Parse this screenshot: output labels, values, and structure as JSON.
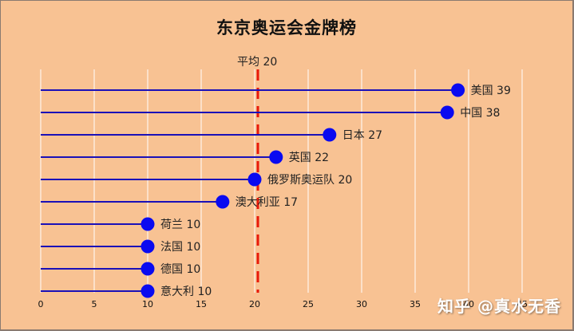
{
  "chart_data": {
    "type": "lollipop",
    "title": "东京奥运会金牌榜",
    "xlabel": "",
    "ylabel": "",
    "xlim": [
      0,
      45
    ],
    "xticks": [
      0,
      5,
      10,
      15,
      20,
      25,
      30,
      35,
      40,
      45
    ],
    "grid": "vertical",
    "categories": [
      "美国",
      "中国",
      "日本",
      "英国",
      "俄罗斯奥运队",
      "澳大利亚",
      "荷兰",
      "法国",
      "德国",
      "意大利"
    ],
    "values": [
      39,
      38,
      27,
      22,
      20,
      17,
      10,
      10,
      10,
      10
    ],
    "labels": [
      "美国 39",
      "中国 38",
      "日本 27",
      "英国 22",
      "俄罗斯奥运队 20",
      "澳大利亚 17",
      "荷兰 10",
      "法国 10",
      "德国 10",
      "意大利 10"
    ],
    "average": {
      "value": 20,
      "label": "平均 20",
      "color": "#e8190a",
      "style": "dashed"
    },
    "colors": {
      "line": "#1a10b8",
      "marker": "#0a0af0",
      "background": "#f8c293",
      "grid": "#ffffff"
    }
  },
  "watermark": "知乎 @真水无香"
}
